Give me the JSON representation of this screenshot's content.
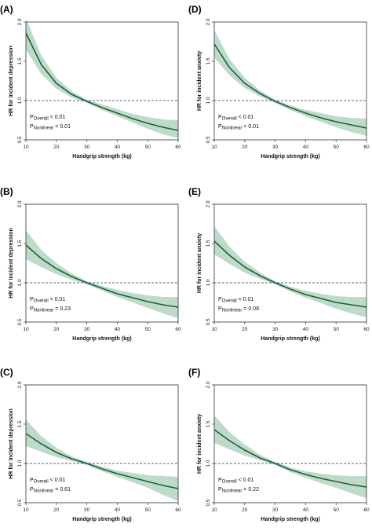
{
  "chart_data": [
    {
      "panel_label": "(A)",
      "type": "line",
      "xlabel": "Handgrip strength (kg)",
      "ylabel": "HR for incident depression",
      "xlim": [
        10,
        60
      ],
      "ylim": [
        0.5,
        2.0
      ],
      "xticks": [
        "10",
        "20",
        "30",
        "40",
        "50",
        "60"
      ],
      "yticks": [
        "0.5",
        "1.0",
        "1.5",
        "2.0"
      ],
      "reference_line": 1.0,
      "x": [
        10,
        15,
        20,
        25,
        30,
        35,
        40,
        45,
        50,
        55,
        60
      ],
      "hr": [
        1.86,
        1.46,
        1.22,
        1.08,
        0.99,
        0.91,
        0.84,
        0.77,
        0.71,
        0.66,
        0.62
      ],
      "ci_lower": [
        1.65,
        1.34,
        1.15,
        1.04,
        0.97,
        0.88,
        0.8,
        0.72,
        0.64,
        0.57,
        0.52
      ],
      "ci_upper": [
        2.05,
        1.58,
        1.29,
        1.12,
        1.01,
        0.95,
        0.89,
        0.83,
        0.79,
        0.76,
        0.75
      ],
      "p_overall_label": "P",
      "p_overall_sub": "Overall",
      "p_overall_val": " < 0.01",
      "p_nonlinear_label": "P",
      "p_nonlinear_sub": "Nonlinear",
      "p_nonlinear_val": " < 0.01"
    },
    {
      "panel_label": "(B)",
      "type": "line",
      "xlabel": "Handgrip strength (kg)",
      "ylabel": "HR for incident depression",
      "xlim": [
        10,
        60
      ],
      "ylim": [
        0.5,
        2.0
      ],
      "xticks": [
        "10",
        "20",
        "30",
        "40",
        "50",
        "60"
      ],
      "yticks": [
        "0.5",
        "1.0",
        "1.5",
        "2.0"
      ],
      "reference_line": 1.0,
      "x": [
        10,
        15,
        20,
        25,
        30,
        35,
        40,
        45,
        50,
        55,
        60
      ],
      "hr": [
        1.48,
        1.31,
        1.18,
        1.08,
        1.0,
        0.93,
        0.86,
        0.81,
        0.76,
        0.72,
        0.69
      ],
      "ci_lower": [
        1.3,
        1.2,
        1.11,
        1.04,
        0.98,
        0.9,
        0.82,
        0.75,
        0.68,
        0.61,
        0.55
      ],
      "ci_upper": [
        1.67,
        1.42,
        1.25,
        1.12,
        1.02,
        0.96,
        0.91,
        0.87,
        0.84,
        0.82,
        0.82
      ],
      "p_overall_label": "P",
      "p_overall_sub": "Overall",
      "p_overall_val": " < 0.01",
      "p_nonlinear_label": "P",
      "p_nonlinear_sub": "Nonlinear",
      "p_nonlinear_val": " = 0.23"
    },
    {
      "panel_label": "(C)",
      "type": "line",
      "xlabel": "Handgrip strength (kg)",
      "ylabel": "HR for incident depression",
      "xlim": [
        10,
        60
      ],
      "ylim": [
        0.5,
        2.0
      ],
      "xticks": [
        "10",
        "20",
        "30",
        "40",
        "50",
        "60"
      ],
      "yticks": [
        "0.5",
        "1.0",
        "1.5",
        "2.0"
      ],
      "reference_line": 1.0,
      "x": [
        10,
        15,
        20,
        25,
        30,
        35,
        40,
        45,
        50,
        55,
        60
      ],
      "hr": [
        1.38,
        1.25,
        1.14,
        1.06,
        1.0,
        0.93,
        0.87,
        0.82,
        0.77,
        0.72,
        0.68
      ],
      "ci_lower": [
        1.22,
        1.15,
        1.08,
        1.03,
        0.98,
        0.9,
        0.83,
        0.76,
        0.69,
        0.6,
        0.52
      ],
      "ci_upper": [
        1.56,
        1.35,
        1.2,
        1.09,
        1.02,
        0.96,
        0.91,
        0.88,
        0.85,
        0.84,
        0.83
      ],
      "p_overall_label": "P",
      "p_overall_sub": "Overall",
      "p_overall_val": " < 0.01",
      "p_nonlinear_label": "P",
      "p_nonlinear_sub": "Nonlinear",
      "p_nonlinear_val": " = 0.61"
    },
    {
      "panel_label": "(D)",
      "type": "line",
      "xlabel": "Handgrip strength (kg)",
      "ylabel": "HR for incident anxiety",
      "xlim": [
        10,
        60
      ],
      "ylim": [
        0.5,
        2.0
      ],
      "xticks": [
        "10",
        "20",
        "30",
        "40",
        "50",
        "60"
      ],
      "yticks": [
        "0.5",
        "1.0",
        "1.5",
        "2.0"
      ],
      "reference_line": 1.0,
      "x": [
        10,
        15,
        20,
        25,
        30,
        35,
        40,
        45,
        50,
        55,
        60
      ],
      "hr": [
        1.72,
        1.42,
        1.22,
        1.09,
        0.99,
        0.91,
        0.84,
        0.78,
        0.73,
        0.69,
        0.65
      ],
      "ci_lower": [
        1.55,
        1.32,
        1.16,
        1.05,
        0.97,
        0.88,
        0.8,
        0.73,
        0.66,
        0.6,
        0.55
      ],
      "ci_upper": [
        1.9,
        1.53,
        1.29,
        1.13,
        1.01,
        0.94,
        0.88,
        0.84,
        0.8,
        0.78,
        0.77
      ],
      "p_overall_label": "P",
      "p_overall_sub": "Overall",
      "p_overall_val": " < 0.01",
      "p_nonlinear_label": "P",
      "p_nonlinear_sub": "Nonlinear",
      "p_nonlinear_val": " < 0.01"
    },
    {
      "panel_label": "(E)",
      "type": "line",
      "xlabel": "Handgrip strength (kg)",
      "ylabel": "HR for incident anxiety",
      "xlim": [
        10,
        60
      ],
      "ylim": [
        0.5,
        2.0
      ],
      "xticks": [
        "10",
        "20",
        "30",
        "40",
        "50",
        "60"
      ],
      "yticks": [
        "0.5",
        "1.0",
        "1.5",
        "2.0"
      ],
      "reference_line": 1.0,
      "x": [
        10,
        15,
        20,
        25,
        30,
        35,
        40,
        45,
        50,
        55,
        60
      ],
      "hr": [
        1.53,
        1.35,
        1.2,
        1.09,
        1.0,
        0.92,
        0.85,
        0.8,
        0.75,
        0.72,
        0.69
      ],
      "ci_lower": [
        1.36,
        1.24,
        1.13,
        1.05,
        0.98,
        0.89,
        0.81,
        0.74,
        0.67,
        0.61,
        0.56
      ],
      "ci_upper": [
        1.72,
        1.46,
        1.27,
        1.13,
        1.02,
        0.95,
        0.9,
        0.86,
        0.83,
        0.82,
        0.82
      ],
      "p_overall_label": "P",
      "p_overall_sub": "Overall",
      "p_overall_val": " < 0.01",
      "p_nonlinear_label": "P",
      "p_nonlinear_sub": "Nonlinear",
      "p_nonlinear_val": " = 0.08"
    },
    {
      "panel_label": "(F)",
      "type": "line",
      "xlabel": "Handgrip strength (kg)",
      "ylabel": "HR for incident anxiety",
      "xlim": [
        10,
        60
      ],
      "ylim": [
        0.5,
        2.0
      ],
      "xticks": [
        "10",
        "20",
        "30",
        "40",
        "50",
        "60"
      ],
      "yticks": [
        "0.5",
        "1.0",
        "1.5",
        "2.0"
      ],
      "reference_line": 1.0,
      "x": [
        10,
        15,
        20,
        25,
        30,
        35,
        40,
        45,
        50,
        55,
        60
      ],
      "hr": [
        1.43,
        1.29,
        1.17,
        1.07,
        1.0,
        0.92,
        0.86,
        0.81,
        0.77,
        0.73,
        0.7
      ],
      "ci_lower": [
        1.26,
        1.18,
        1.1,
        1.04,
        0.98,
        0.89,
        0.82,
        0.75,
        0.69,
        0.62,
        0.56
      ],
      "ci_upper": [
        1.61,
        1.4,
        1.24,
        1.11,
        1.02,
        0.95,
        0.9,
        0.87,
        0.85,
        0.84,
        0.84
      ],
      "p_overall_label": "P",
      "p_overall_sub": "Overall",
      "p_overall_val": " < 0.01",
      "p_nonlinear_label": "P",
      "p_nonlinear_sub": "Nonlinear",
      "p_nonlinear_val": " = 0.22"
    }
  ],
  "colors": {
    "curve": "#1e5e3a",
    "ci_band": "#a8cfb8",
    "axis": "#333333",
    "reference": "#333333"
  }
}
